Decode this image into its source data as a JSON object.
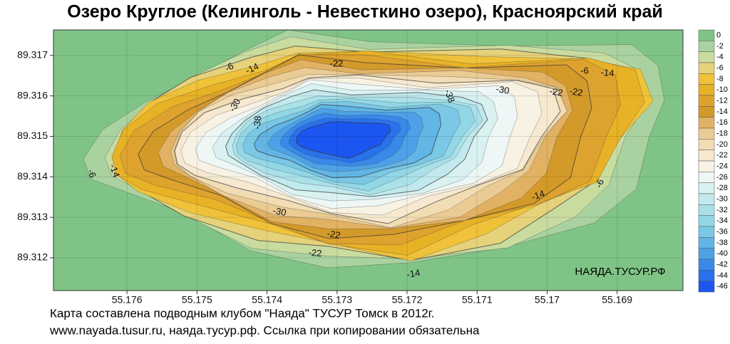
{
  "title": "Озеро Круглое (Келинголь - Невесткино озеро), Красноярский край",
  "map": {
    "xlim": [
      55.17705,
      55.16806
    ],
    "ylim": [
      89.31119,
      89.31763
    ],
    "xticks": [
      55.176,
      55.175,
      55.174,
      55.173,
      55.172,
      55.171,
      55.17,
      55.169
    ],
    "yticks": [
      89.317,
      89.316,
      89.315,
      89.314,
      89.313,
      89.312
    ]
  },
  "colorbar": {
    "levels": [
      0,
      -2,
      -4,
      -6,
      -8,
      -10,
      -12,
      -14,
      -16,
      -18,
      -20,
      -22,
      -24,
      -26,
      -28,
      -30,
      -32,
      -34,
      -36,
      -38,
      -40,
      -42,
      -44,
      -46
    ],
    "colors": [
      "#7fc486",
      "#a9d2a0",
      "#c9dca0",
      "#e6d27a",
      "#efc23a",
      "#e8b226",
      "#dea32e",
      "#d39a2a",
      "#e2b264",
      "#eacb93",
      "#f1dcb4",
      "#f6e9cf",
      "#f8f2e4",
      "#eef7f6",
      "#d9f1f1",
      "#c2e9ed",
      "#aae1e9",
      "#92d7e5",
      "#7ac8e5",
      "#62b5e5",
      "#4ea1e6",
      "#3a89e9",
      "#2a71ec",
      "#1b56f0"
    ]
  },
  "contour_labels": [
    -6,
    -14,
    -22,
    -30,
    -38,
    -38,
    -30,
    -14,
    -22,
    -22,
    -14,
    -6,
    -6,
    -14,
    -22,
    -30,
    -22,
    -14,
    -6
  ],
  "watermark": "НАЯДА.ТУСУР.РФ",
  "footer": [
    "Карта составлена подводным клубом \"Наяда\" ТУСУР Томск в 2012г.",
    "www.nayada.tusur.ru, наяда.тусур.рф. Ссылка при копировании обязательна"
  ]
}
